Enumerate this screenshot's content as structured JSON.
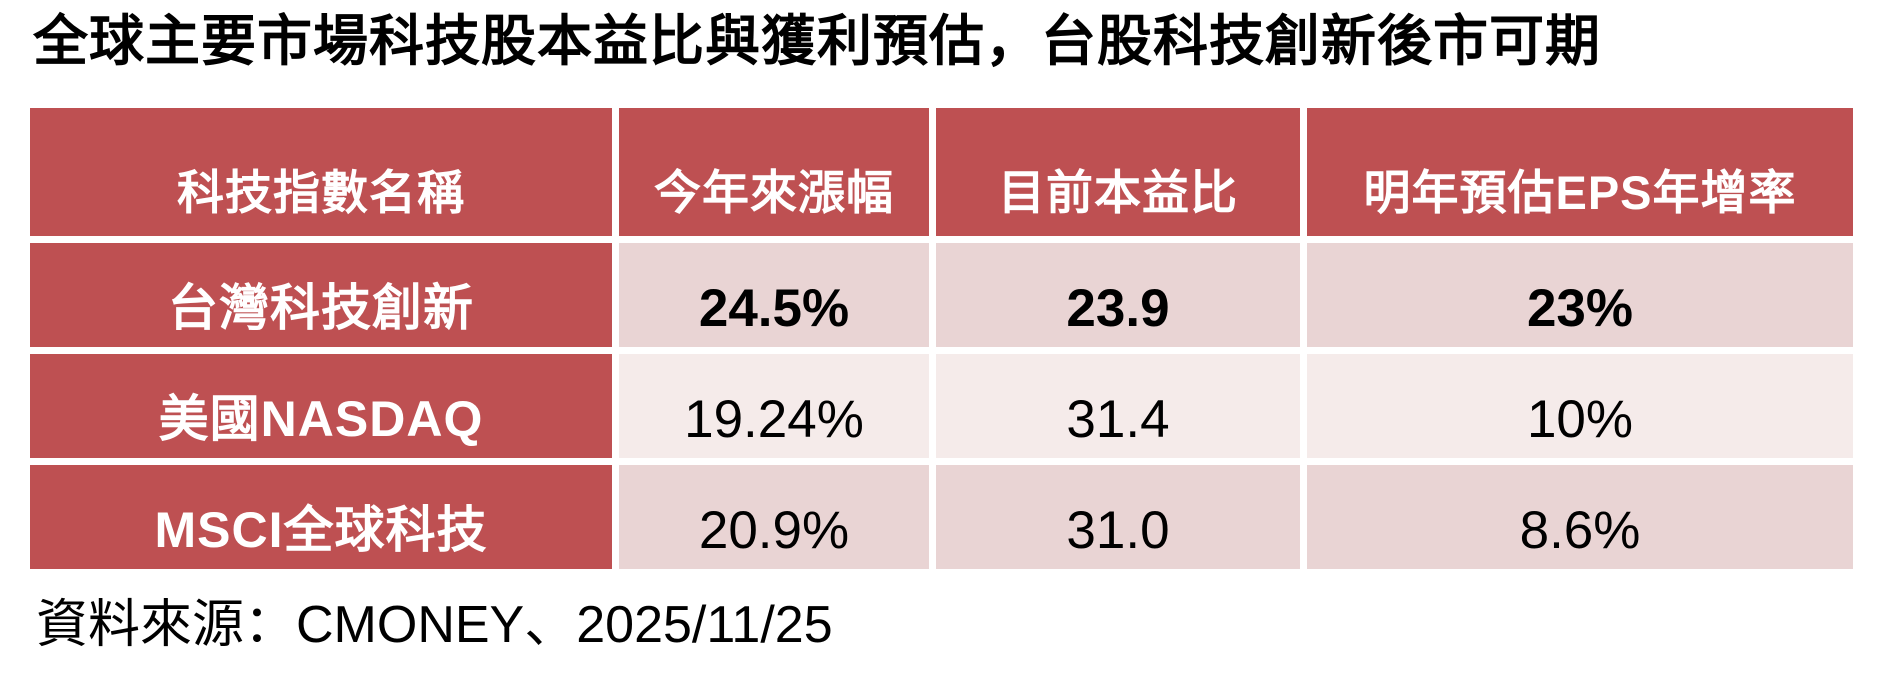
{
  "title": "全球主要市場科技股本益比與獲利預估，台股科技創新後市可期",
  "source": "資料來源：CMONEY、2025/11/25",
  "table": {
    "columns": [
      {
        "label": "科技指數名稱"
      },
      {
        "label": "今年來漲幅"
      },
      {
        "label": "目前本益比"
      },
      {
        "label": "明年預估EPS年增率"
      }
    ],
    "rows": [
      {
        "cells": [
          "台灣科技創新",
          "24.5%",
          "23.9",
          "23%"
        ],
        "emphasized": true
      },
      {
        "cells": [
          "美國NASDAQ",
          "19.24%",
          "31.4",
          "10%"
        ],
        "emphasized": false
      },
      {
        "cells": [
          "MSCI全球科技",
          "20.9%",
          "31.0",
          "8.6%"
        ],
        "emphasized": false
      }
    ]
  },
  "chart_data": {
    "type": "table",
    "title": "全球主要市場科技股本益比與獲利預估，台股科技創新後市可期",
    "columns": [
      "科技指數名稱",
      "今年來漲幅",
      "目前本益比",
      "明年預估EPS年增率"
    ],
    "rows": [
      {
        "index_name": "台灣科技創新",
        "ytd_return_pct": 24.5,
        "current_pe": 23.9,
        "next_year_eps_growth_pct": 23
      },
      {
        "index_name": "美國NASDAQ",
        "ytd_return_pct": 19.24,
        "current_pe": 31.4,
        "next_year_eps_growth_pct": 10
      },
      {
        "index_name": "MSCI全球科技",
        "ytd_return_pct": 20.9,
        "current_pe": 31.0,
        "next_year_eps_growth_pct": 8.6
      }
    ],
    "source": "資料來源：CMONEY、2025/11/25"
  },
  "colors": {
    "header_bg": "#BE5052",
    "row_label_bg": "#BE5052",
    "band_dark_pink": "#E9D4D4",
    "band_light_pink": "#F5EBEA",
    "header_text": "#FFFFFF",
    "value_text": "#000000",
    "background": "#FFFFFF"
  }
}
